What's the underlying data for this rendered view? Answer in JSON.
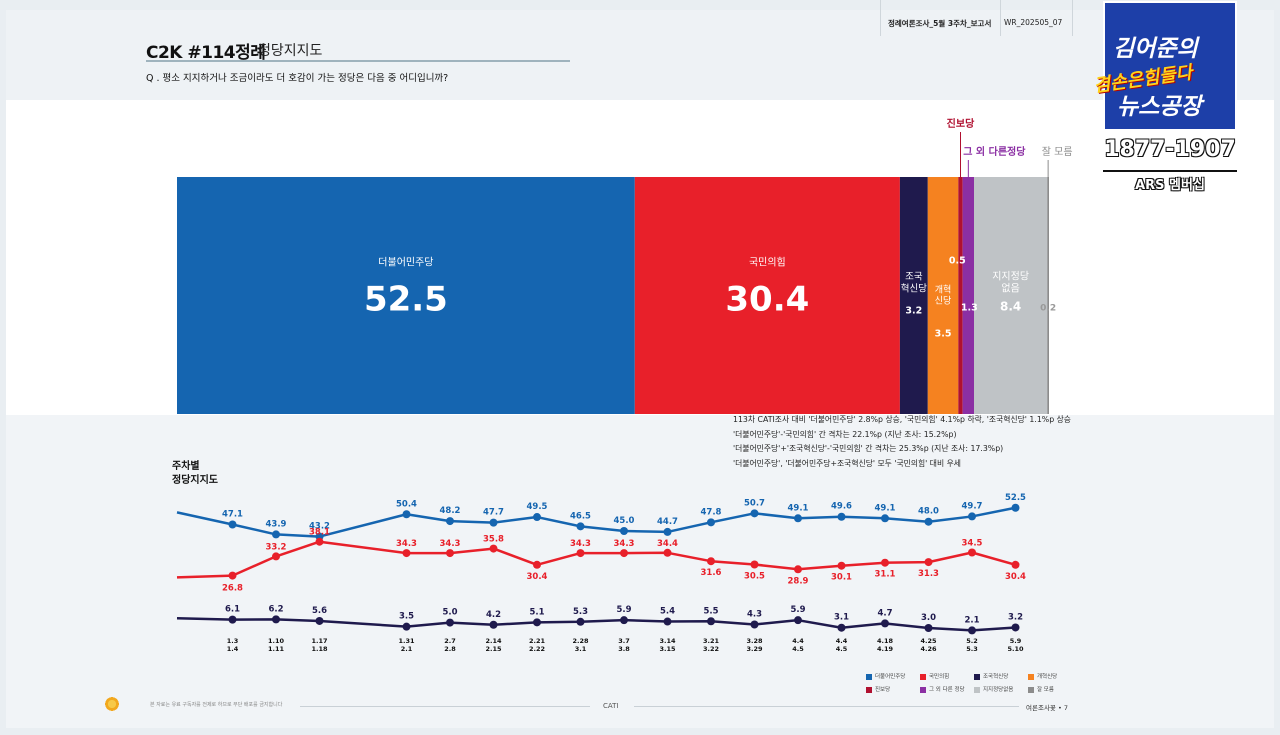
{
  "header": {
    "title": "C2K #114정례",
    "subtitle": "정당지지도",
    "question": "Q . 평소 지지하거나 조금이라도 더 호감이 가는 정당은 다음 중 어디입니까?",
    "report_name": "정례여론조사_5월 3주차_보고서",
    "report_code": "WR_202505_07"
  },
  "logo": {
    "line1": "김어준의",
    "middle": "겸손은힘들다",
    "line2": "뉴스공장",
    "phone": "1877-1907",
    "subline": "ARS 멤버십"
  },
  "notes": [
    "113차 CATI조사 대비 '더불어민주당' 2.8%p 상승, '국민의힘' 4.1%p 하락, '조국혁신당' 1.1%p 상승",
    "'더불어민주당'-'국민의힘' 간 격차는 22.1%p (지난 조사: 15.2%p)",
    "'더불어민주당'+'조국혁신당'-'국민의힘' 간 격차는 25.3%p (지난 조사: 17.3%p)",
    "'더불어민주당', '더불어민주당+조국혁신당' 모두 '국민의힘' 대비 우세"
  ],
  "trend_title": [
    "주차별",
    "정당지지도"
  ],
  "legend": [
    {
      "label": "더불어민주당",
      "color": "#1565b0"
    },
    {
      "label": "국민의힘",
      "color": "#e8202a"
    },
    {
      "label": "조국혁신당",
      "color": "#1f1a4d"
    },
    {
      "label": "개혁신당",
      "color": "#f58220"
    },
    {
      "label": "진보당",
      "color": "#b01030"
    },
    {
      "label": "그 외 다른 정당",
      "color": "#8b2fa3"
    },
    {
      "label": "지지정당없음",
      "color": "#bfc3c6"
    },
    {
      "label": "잘 모름",
      "color": "#8c8c8c"
    }
  ],
  "footer": {
    "left": "본 자료는 유료 구독자를 전제로 하므로 무단 배포를 금지합니다",
    "center": "CATI",
    "right": "여론조사꽃 • 7"
  },
  "chart_data": [
    {
      "type": "bar",
      "subtype": "stacked-100",
      "segments": [
        {
          "name": "더불어민주당",
          "value": 52.5,
          "color": "#1565b0"
        },
        {
          "name": "국민의힘",
          "value": 30.4,
          "color": "#e8202a"
        },
        {
          "name": "조국\n혁신당",
          "value": 3.2,
          "color": "#1f1a4d"
        },
        {
          "name": "개혁\n신당",
          "value": 3.5,
          "color": "#f58220"
        },
        {
          "name": "진보당",
          "value": 0.5,
          "color": "#b01030"
        },
        {
          "name": "그 외 다른정당",
          "value": 1.3,
          "color": "#8b2fa3"
        },
        {
          "name": "지지정당\n없음",
          "value": 8.4,
          "color": "#bfc3c6"
        },
        {
          "name": "잘 모름",
          "value": 0.2,
          "color": "#8c8c8c"
        }
      ]
    },
    {
      "type": "line",
      "categories": [
        "1.3\n1.4",
        "1.10\n1.11",
        "1.17\n1.18",
        "",
        "1.31\n2.1",
        "2.7\n2.8",
        "2.14\n2.15",
        "2.21\n2.22",
        "2.28\n3.1",
        "3.7\n3.8",
        "3.14\n3.15",
        "3.21\n3.22",
        "3.28\n3.29",
        "4.4\n4.5",
        "4.4\n4.5",
        "4.18\n4.19",
        "4.25\n4.26",
        "5.2\n5.3",
        "5.9\n5.10"
      ],
      "series": [
        {
          "name": "더불어민주당",
          "color": "#1565b0",
          "start": 51.0,
          "values": [
            47.1,
            43.9,
            43.2,
            null,
            50.4,
            48.2,
            47.7,
            49.5,
            46.5,
            45.0,
            44.7,
            47.8,
            50.7,
            49.1,
            49.6,
            49.1,
            48.0,
            49.7,
            52.5
          ]
        },
        {
          "name": "국민의힘",
          "color": "#e8202a",
          "start": 26.2,
          "values": [
            26.8,
            33.2,
            38.1,
            null,
            34.3,
            34.3,
            35.8,
            30.4,
            34.3,
            34.3,
            34.4,
            31.6,
            30.5,
            28.9,
            30.1,
            31.1,
            31.3,
            34.5,
            30.4
          ]
        },
        {
          "name": "조국혁신당",
          "color": "#1f1a4d",
          "start": 6.6,
          "values": [
            6.1,
            6.2,
            5.6,
            null,
            3.5,
            5.0,
            4.2,
            5.1,
            5.3,
            5.9,
            5.4,
            5.5,
            4.3,
            5.9,
            3.1,
            4.7,
            3.0,
            2.1,
            3.2
          ]
        }
      ]
    }
  ]
}
